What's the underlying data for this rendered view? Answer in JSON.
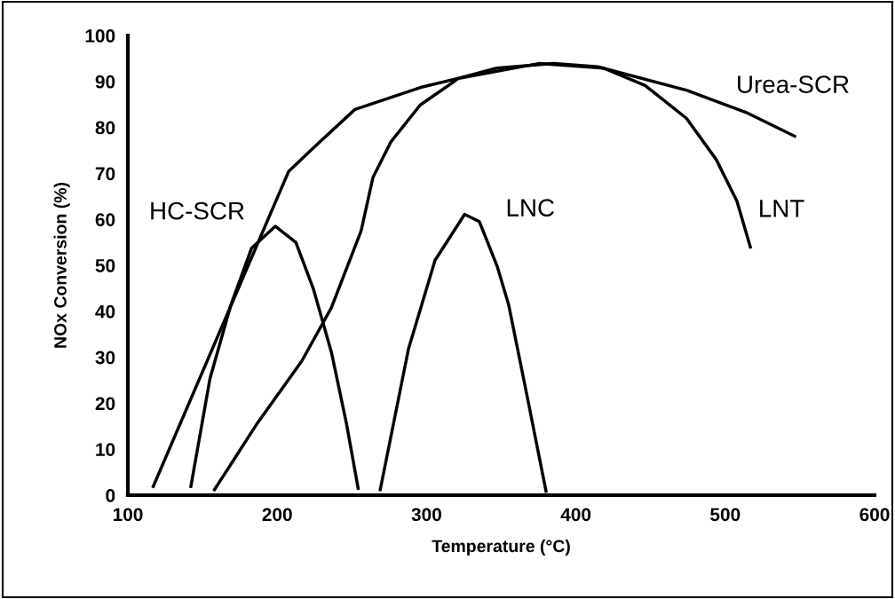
{
  "chart_data": {
    "type": "line",
    "xlabel": "Temperature (°C)",
    "ylabel": "NOx Conversion (%)",
    "xlim": [
      100,
      600
    ],
    "xticks": [
      100,
      200,
      300,
      400,
      500,
      600
    ],
    "ylim": [
      0,
      100
    ],
    "yticks": [
      0,
      10,
      20,
      30,
      40,
      50,
      60,
      70,
      80,
      90,
      100
    ],
    "grid": false,
    "marker": "none",
    "line_style": "solid",
    "series": [
      {
        "name": "Urea-SCR",
        "color": "#000000",
        "x": [
          117,
          207.6,
          224,
          252,
          296,
          321.6,
          347,
          385,
          414.7,
          474,
          513.8,
          546.5
        ],
        "values": [
          1.9,
          70.4,
          75.5,
          83.9,
          88.7,
          90.7,
          92.9,
          93.9,
          93.2,
          88.1,
          83.3,
          78.1
        ]
      },
      {
        "name": "HC-SCR",
        "color": "#000000",
        "x": [
          142.2,
          155,
          169,
          182.8,
          198.7,
          212.5,
          224.4,
          236.3,
          246.3,
          254.2
        ],
        "values": [
          1.9,
          25.4,
          41.4,
          53.7,
          58.5,
          55,
          44.7,
          31.1,
          15.7,
          1.5
        ]
      },
      {
        "name": "LNT",
        "color": "#000000",
        "x": [
          158,
          186.8,
          216.5,
          236.3,
          256.2,
          264.1,
          276,
          295.8,
          321.6,
          375,
          418.7,
          446.4,
          474,
          494,
          507.8,
          516.8
        ],
        "values": [
          1.2,
          15.7,
          29.2,
          40.8,
          57.5,
          69.1,
          76.8,
          84.9,
          90.7,
          93.9,
          92.9,
          89.1,
          82,
          73,
          64,
          54
        ]
      },
      {
        "name": "LNC",
        "color": "#000000",
        "x": [
          269,
          287.9,
          305.7,
          325.5,
          335.4,
          347.3,
          355,
          367,
          380
        ],
        "values": [
          1.2,
          31.8,
          51.1,
          61.1,
          59.5,
          49.8,
          41.4,
          22.1,
          0.9
        ]
      }
    ]
  }
}
